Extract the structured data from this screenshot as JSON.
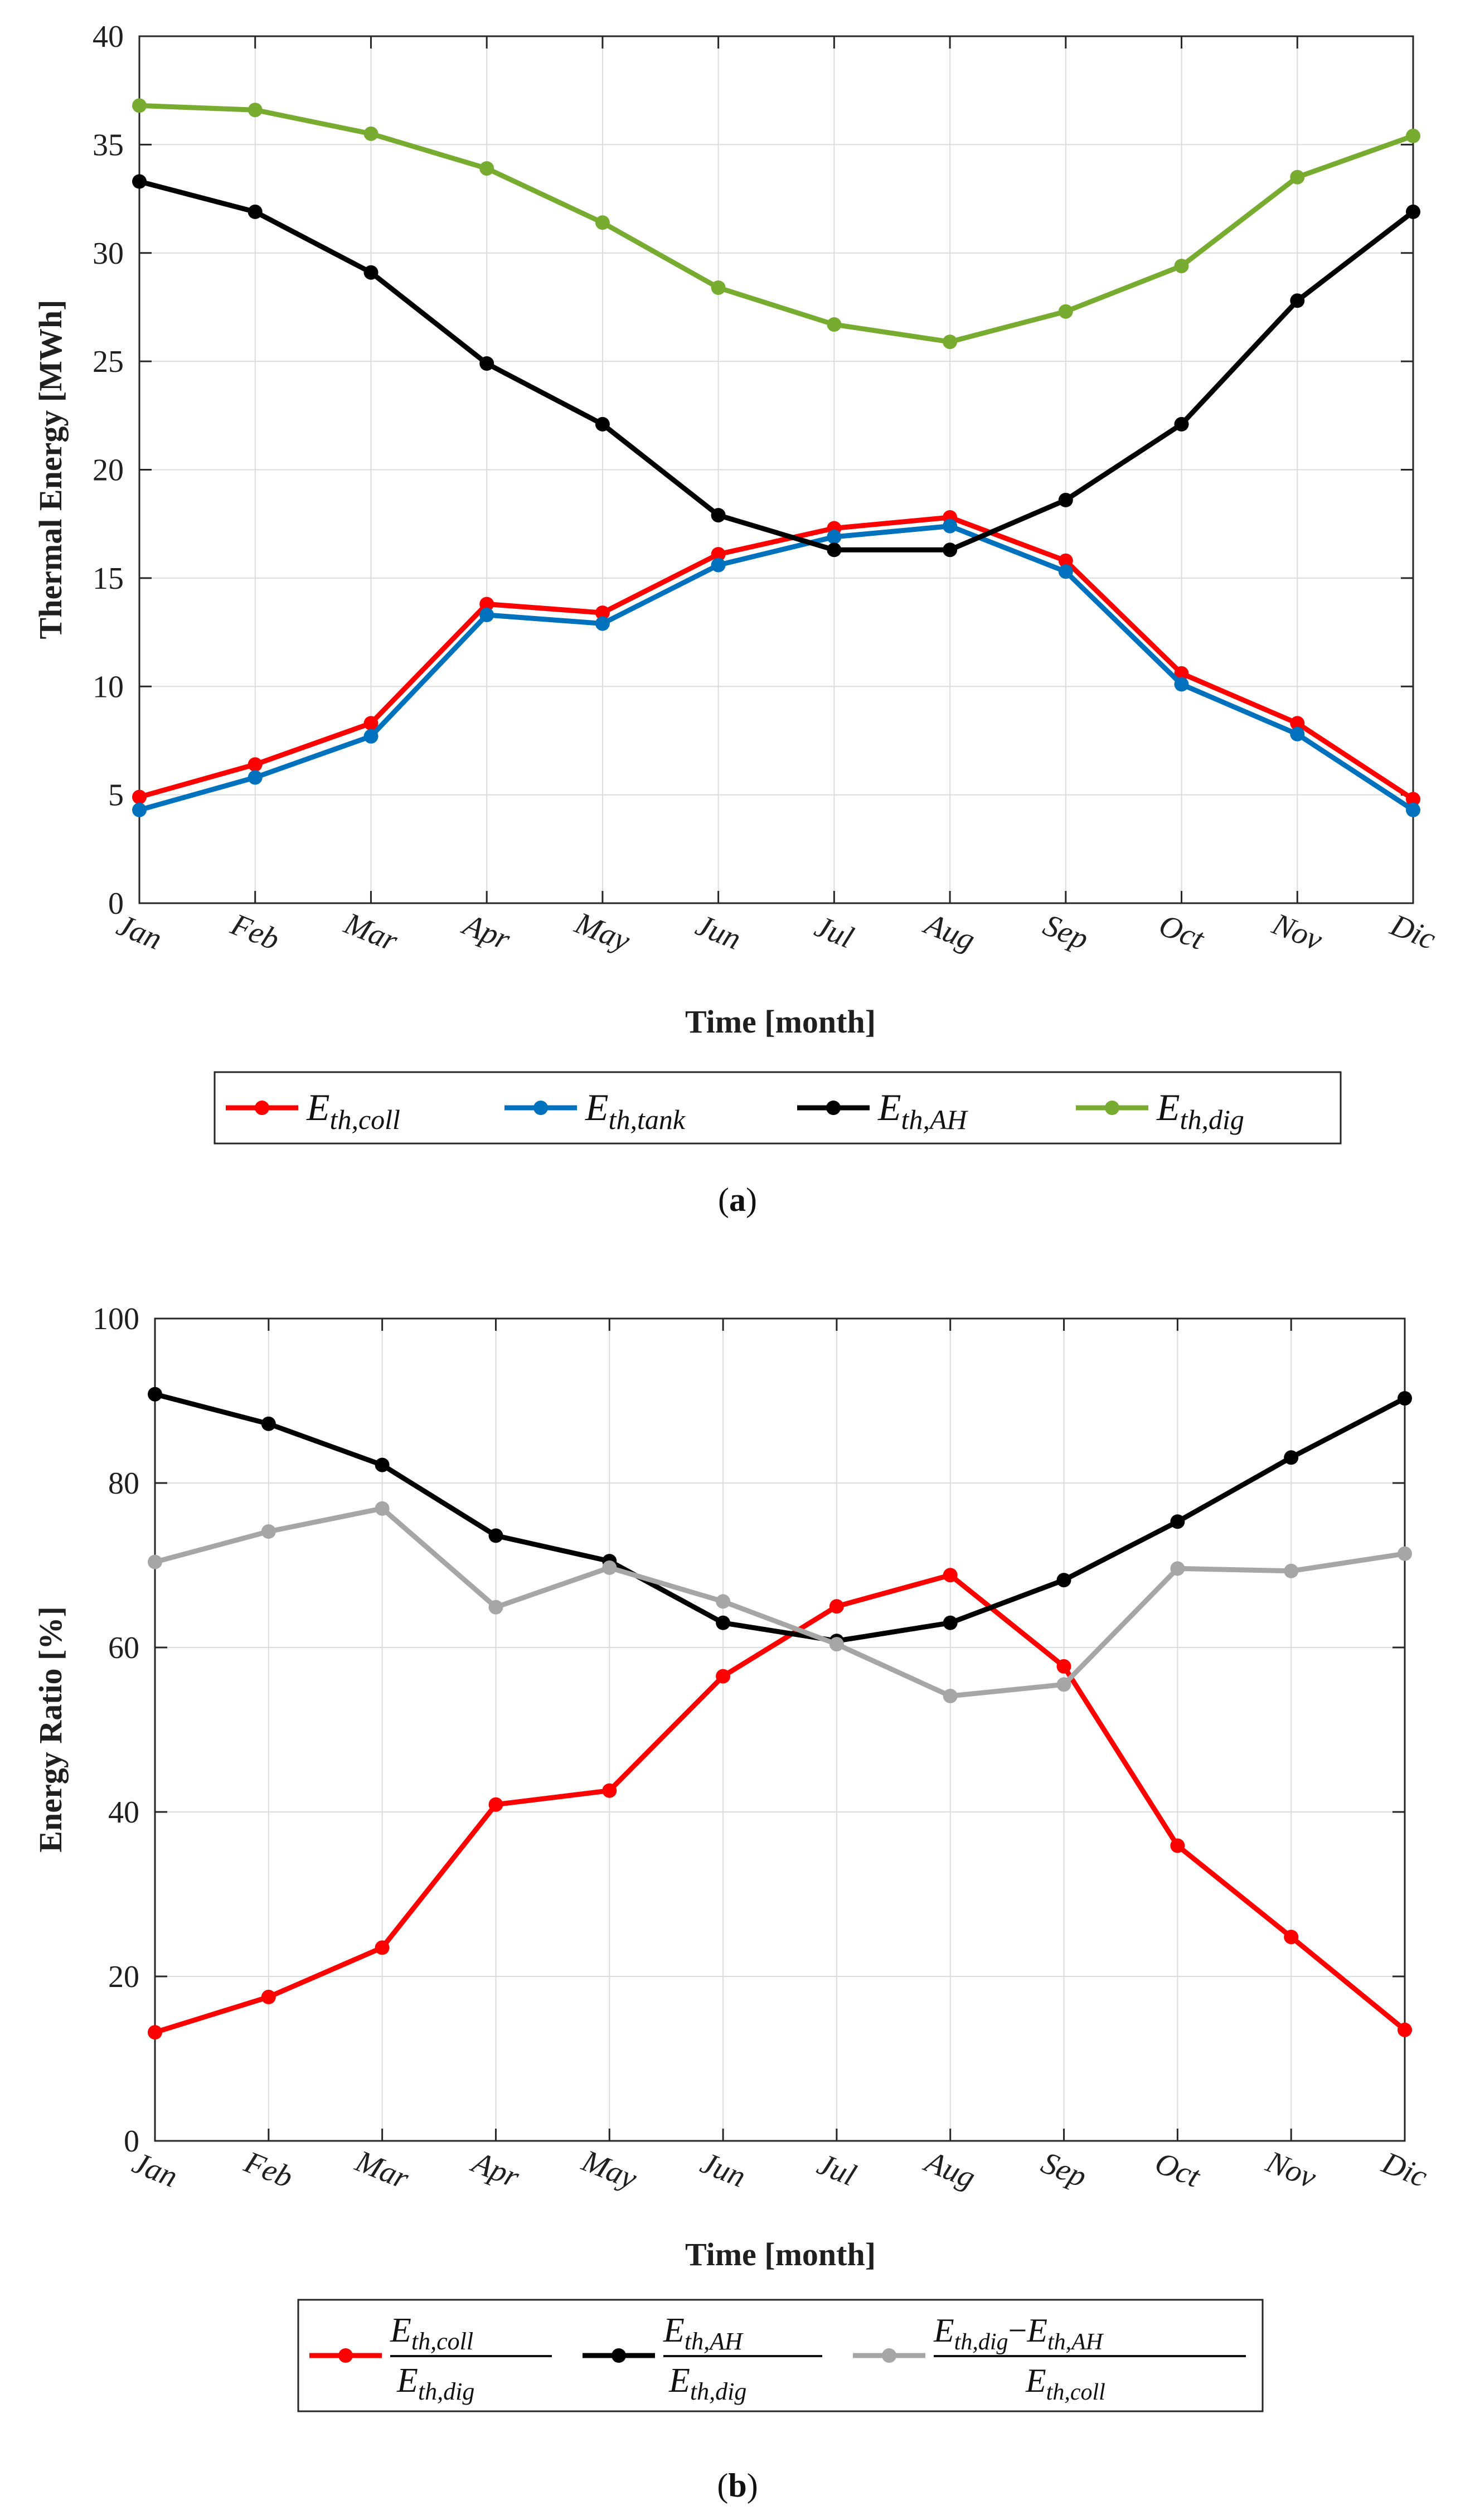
{
  "figure": {
    "panel_a": {
      "caption": {
        "open": "(",
        "letter": "a",
        "close": ")"
      },
      "legend": [
        {
          "base": "E",
          "sub": "th,coll"
        },
        {
          "base": "E",
          "sub": "th,tank"
        },
        {
          "base": "E",
          "sub": "th,AH"
        },
        {
          "base": "E",
          "sub": "th,dig"
        }
      ]
    },
    "panel_b": {
      "caption": {
        "open": "(",
        "letter": "b",
        "close": ")"
      },
      "legend": [
        {
          "num_base": "E",
          "num_sub": "th,coll",
          "den_base": "E",
          "den_sub": "th,dig"
        },
        {
          "num_base": "E",
          "num_sub": "th,AH",
          "den_base": "E",
          "den_sub": "th,dig"
        },
        {
          "num_base": "E",
          "num_sub": "th,dig",
          "num_op": "−",
          "num_base2": "E",
          "num_sub2": "th,AH",
          "den_base": "E",
          "den_sub": "th,coll"
        }
      ]
    }
  },
  "chart_data": [
    {
      "type": "line",
      "title": "",
      "xlabel": "Time [month]",
      "ylabel": "Thermal Energy  [MWh]",
      "categories": [
        "Jan",
        "Feb",
        "Mar",
        "Apr",
        "May",
        "Jun",
        "Jul",
        "Aug",
        "Sep",
        "Oct",
        "Nov",
        "Dic"
      ],
      "ylim": [
        0,
        40
      ],
      "yticks": [
        0,
        5,
        10,
        15,
        20,
        25,
        30,
        35,
        40
      ],
      "grid": true,
      "legend_position": "bottom-outside",
      "series": [
        {
          "name": "E_th,coll",
          "color": "#ff0000",
          "values": [
            4.9,
            6.4,
            8.3,
            13.8,
            13.4,
            16.1,
            17.3,
            17.8,
            15.8,
            10.6,
            8.3,
            4.8
          ]
        },
        {
          "name": "E_th,tank",
          "color": "#0072bd",
          "values": [
            4.3,
            5.8,
            7.7,
            13.3,
            12.9,
            15.6,
            16.9,
            17.4,
            15.3,
            10.1,
            7.8,
            4.3
          ]
        },
        {
          "name": "E_th,AH",
          "color": "#000000",
          "values": [
            33.3,
            31.9,
            29.1,
            24.9,
            22.1,
            17.9,
            16.3,
            16.3,
            18.6,
            22.1,
            27.8,
            31.9
          ]
        },
        {
          "name": "E_th,dig",
          "color": "#77ac30",
          "values": [
            36.8,
            36.6,
            35.5,
            33.9,
            31.4,
            28.4,
            26.7,
            25.9,
            27.3,
            29.4,
            33.5,
            35.4
          ]
        }
      ]
    },
    {
      "type": "line",
      "title": "",
      "xlabel": "Time [month]",
      "ylabel": "Energy Ratio [%]",
      "categories": [
        "Jan",
        "Feb",
        "Mar",
        "Apr",
        "May",
        "Jun",
        "Jul",
        "Aug",
        "Sep",
        "Oct",
        "Nov",
        "Dic"
      ],
      "ylim": [
        0,
        100
      ],
      "yticks": [
        0,
        20,
        40,
        60,
        80,
        100
      ],
      "grid": true,
      "legend_position": "bottom-outside",
      "series": [
        {
          "name": "E_th,coll / E_th,dig",
          "color": "#ff0000",
          "values": [
            13.2,
            17.5,
            23.5,
            40.9,
            42.6,
            56.5,
            65.0,
            68.8,
            57.7,
            35.9,
            24.8,
            13.5
          ]
        },
        {
          "name": "E_th,AH / E_th,dig",
          "color": "#000000",
          "values": [
            90.8,
            87.2,
            82.2,
            73.6,
            70.5,
            63.0,
            60.8,
            63.0,
            68.2,
            75.3,
            83.1,
            90.3
          ]
        },
        {
          "name": "(E_th,dig − E_th,AH) / E_th,coll",
          "color": "#a6a6a6",
          "values": [
            70.4,
            74.1,
            76.9,
            64.9,
            69.7,
            65.6,
            60.4,
            54.1,
            55.5,
            69.6,
            69.3,
            71.4
          ]
        }
      ]
    }
  ]
}
